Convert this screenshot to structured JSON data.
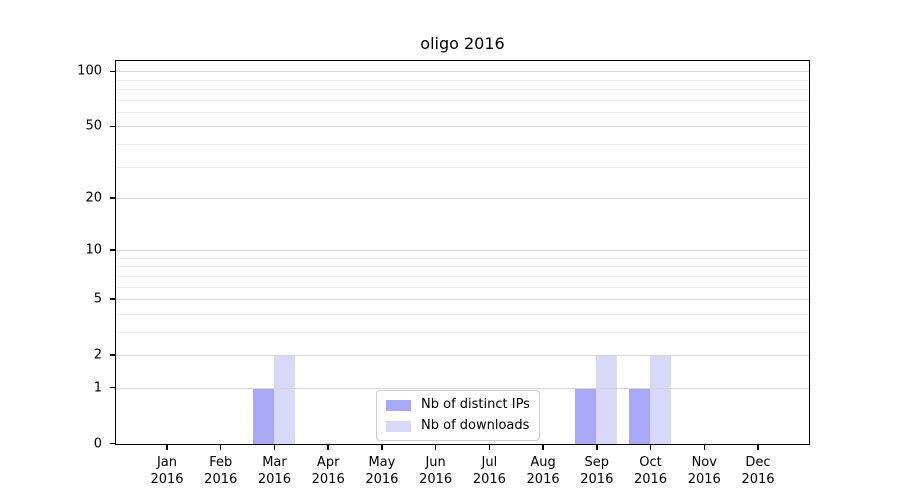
{
  "chart_data": {
    "type": "bar",
    "title": "oligo 2016",
    "categories": [
      "Jan",
      "Feb",
      "Mar",
      "Apr",
      "May",
      "Jun",
      "Jul",
      "Aug",
      "Sep",
      "Oct",
      "Nov",
      "Dec"
    ],
    "x_tick_second_line": "2016",
    "series": [
      {
        "name": "Nb of distinct IPs",
        "color": "#a8a8f7",
        "values": [
          0,
          0,
          1,
          0,
          0,
          0,
          0,
          0,
          1,
          1,
          0,
          0
        ]
      },
      {
        "name": "Nb of downloads",
        "color": "#d8d8f9",
        "values": [
          0,
          0,
          2,
          0,
          0,
          0,
          0,
          0,
          2,
          2,
          0,
          0
        ]
      }
    ],
    "y_axis": {
      "scale": "log1p",
      "tick_values": [
        0,
        1,
        2,
        5,
        10,
        20,
        50,
        100
      ],
      "minor_gridline_values": [
        3,
        4,
        6,
        7,
        8,
        9,
        30,
        40,
        60,
        70,
        80,
        90
      ],
      "ylim": [
        0,
        113
      ]
    },
    "legend": {
      "position": "lower center"
    },
    "grid": true
  },
  "colors": {
    "background": "#ffffff",
    "spine": "#000000",
    "major_grid": "#d6d6d6",
    "minor_grid": "#ededed",
    "text": "#000000",
    "legend_border": "#cccccc"
  }
}
